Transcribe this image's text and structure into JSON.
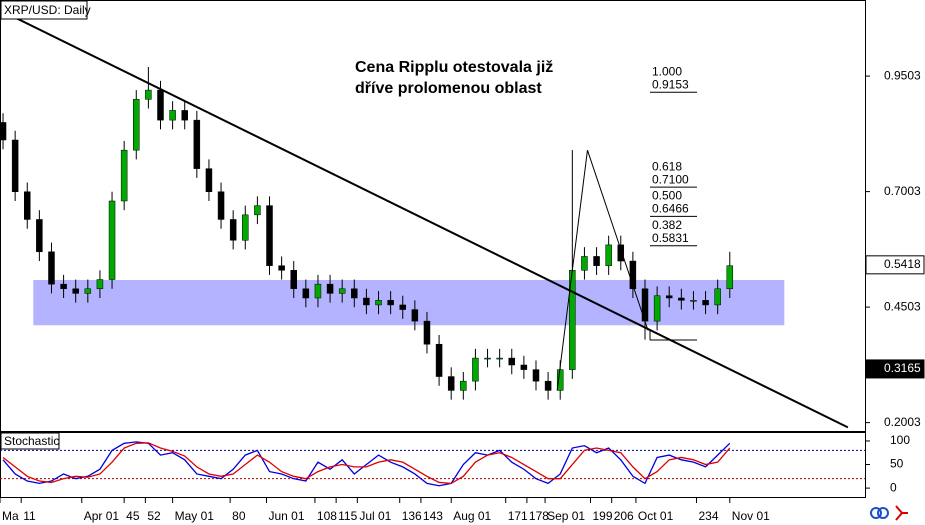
{
  "chart_data": [
    {
      "type": "candlestick",
      "title": "XRP/USD: Daily",
      "annotation": [
        "Cena Ripplu otestovala již",
        "dříve prolomenou oblast"
      ],
      "x": [
        5,
        9,
        13,
        17,
        21,
        25,
        29,
        33,
        37,
        41,
        45,
        49,
        53,
        57,
        61,
        65,
        69,
        73,
        77,
        81,
        85,
        89,
        93,
        97,
        101,
        105,
        109,
        113,
        117,
        121,
        125,
        129,
        133,
        137,
        141,
        145,
        149,
        153,
        157,
        161,
        165,
        169,
        173,
        177,
        181,
        185,
        189,
        193,
        197,
        201,
        205,
        209,
        213,
        217,
        221,
        225,
        229,
        233,
        237,
        241,
        245
      ],
      "open": [
        0.85,
        0.812,
        0.7,
        0.64,
        0.57,
        0.5,
        0.49,
        0.48,
        0.49,
        0.51,
        0.68,
        0.79,
        0.9,
        0.92,
        0.855,
        0.876,
        0.855,
        0.75,
        0.7,
        0.64,
        0.595,
        0.65,
        0.67,
        0.54,
        0.53,
        0.49,
        0.47,
        0.5,
        0.48,
        0.49,
        0.47,
        0.455,
        0.465,
        0.455,
        0.445,
        0.42,
        0.37,
        0.3,
        0.27,
        0.29,
        0.34,
        0.34,
        0.34,
        0.325,
        0.315,
        0.29,
        0.27,
        0.315,
        0.53,
        0.56,
        0.54,
        0.585,
        0.55,
        0.49,
        0.42,
        0.475,
        0.47,
        0.465,
        0.465,
        0.455,
        0.49
      ],
      "high": [
        0.87,
        0.832,
        0.72,
        0.66,
        0.59,
        0.52,
        0.51,
        0.51,
        0.53,
        0.7,
        0.81,
        0.92,
        0.97,
        0.94,
        0.896,
        0.896,
        0.875,
        0.77,
        0.72,
        0.66,
        0.67,
        0.69,
        0.69,
        0.56,
        0.55,
        0.51,
        0.52,
        0.52,
        0.51,
        0.51,
        0.49,
        0.485,
        0.485,
        0.475,
        0.465,
        0.44,
        0.39,
        0.32,
        0.31,
        0.36,
        0.36,
        0.36,
        0.36,
        0.345,
        0.335,
        0.31,
        0.335,
        0.79,
        0.58,
        0.58,
        0.605,
        0.605,
        0.57,
        0.51,
        0.495,
        0.495,
        0.49,
        0.485,
        0.485,
        0.51,
        0.57
      ],
      "low": [
        0.792,
        0.68,
        0.62,
        0.55,
        0.48,
        0.47,
        0.46,
        0.46,
        0.47,
        0.49,
        0.66,
        0.77,
        0.88,
        0.835,
        0.835,
        0.835,
        0.73,
        0.68,
        0.62,
        0.575,
        0.575,
        0.63,
        0.52,
        0.51,
        0.47,
        0.45,
        0.45,
        0.46,
        0.46,
        0.45,
        0.435,
        0.435,
        0.435,
        0.425,
        0.4,
        0.35,
        0.28,
        0.25,
        0.25,
        0.27,
        0.32,
        0.32,
        0.305,
        0.295,
        0.27,
        0.25,
        0.25,
        0.295,
        0.51,
        0.52,
        0.52,
        0.53,
        0.47,
        0.38,
        0.4,
        0.45,
        0.445,
        0.445,
        0.435,
        0.435,
        0.47
      ],
      "close": [
        0.812,
        0.7,
        0.64,
        0.57,
        0.5,
        0.49,
        0.48,
        0.49,
        0.51,
        0.68,
        0.79,
        0.9,
        0.92,
        0.855,
        0.876,
        0.855,
        0.75,
        0.7,
        0.64,
        0.595,
        0.65,
        0.67,
        0.54,
        0.53,
        0.49,
        0.47,
        0.5,
        0.48,
        0.49,
        0.47,
        0.455,
        0.465,
        0.455,
        0.445,
        0.42,
        0.37,
        0.3,
        0.27,
        0.29,
        0.34,
        0.34,
        0.34,
        0.325,
        0.315,
        0.29,
        0.27,
        0.315,
        0.53,
        0.56,
        0.54,
        0.585,
        0.55,
        0.49,
        0.42,
        0.475,
        0.47,
        0.465,
        0.465,
        0.455,
        0.49,
        0.54
      ],
      "up_color": "#00a800",
      "down_color": "#000000",
      "xlim": [
        4,
        288
      ],
      "xticks": [
        {
          "value": 4,
          "label": "Ma"
        },
        11,
        {
          "value": 31,
          "label": "Apr 01"
        },
        45,
        52,
        {
          "value": 61,
          "label": "May 01"
        },
        80,
        {
          "value": 92,
          "label": "Jun 01"
        },
        108,
        115,
        {
          "value": 122,
          "label": "Jul 01"
        },
        136,
        143,
        {
          "value": 153,
          "label": "Aug 01"
        },
        171,
        178,
        {
          "value": 184,
          "label": "Sep 01"
        },
        199,
        206,
        {
          "value": 214,
          "label": "Oct 01"
        },
        234,
        {
          "value": 245,
          "label": "Nov 01"
        }
      ],
      "ylim": [
        0.18,
        1.115
      ],
      "yticks": [
        0.2003,
        0.4503,
        0.7003,
        0.9503
      ],
      "price_markers": [
        0.5418,
        0.3165
      ],
      "trendline": {
        "x": [
          4,
          284
        ],
        "y": [
          1.093,
          0.19
        ]
      },
      "zone": {
        "x": [
          15,
          263
        ],
        "y": [
          0.411,
          0.509
        ],
        "color": "#8080ff"
      },
      "fib_swing": {
        "x": [
          188,
          198,
          218
        ],
        "y": [
          0.27,
          0.79,
          0.4
        ]
      },
      "fib_levels": [
        {
          "ratio": "1.000",
          "price": 0.9153
        },
        {
          "ratio": "0.618",
          "price": {
            "value": 0.71,
            "label": "0.7100"
          }
        },
        {
          "ratio": "0.500",
          "price": 0.6466
        },
        {
          "ratio": "0.382",
          "price": 0.5831
        }
      ]
    },
    {
      "type": "line",
      "title": "Stochastic",
      "x": [
        5,
        9,
        13,
        17,
        21,
        25,
        29,
        33,
        37,
        41,
        45,
        49,
        53,
        57,
        61,
        65,
        69,
        73,
        77,
        81,
        85,
        89,
        93,
        97,
        101,
        105,
        109,
        113,
        117,
        121,
        125,
        129,
        133,
        137,
        141,
        145,
        149,
        153,
        157,
        161,
        165,
        169,
        173,
        177,
        181,
        185,
        189,
        193,
        197,
        201,
        205,
        209,
        213,
        217,
        221,
        225,
        229,
        233,
        237,
        241,
        245
      ],
      "series": [
        {
          "color": "#0000dd",
          "values": [
            60,
            30,
            15,
            10,
            15,
            30,
            20,
            25,
            40,
            80,
            95,
            98,
            95,
            70,
            75,
            60,
            30,
            25,
            20,
            40,
            70,
            80,
            35,
            30,
            20,
            15,
            55,
            40,
            60,
            30,
            50,
            70,
            55,
            45,
            30,
            10,
            5,
            10,
            50,
            75,
            70,
            80,
            55,
            40,
            20,
            10,
            30,
            85,
            90,
            75,
            85,
            60,
            25,
            10,
            65,
            70,
            60,
            55,
            45,
            70,
            95
          ]
        },
        {
          "color": "#dd0000",
          "values": [
            65,
            45,
            25,
            15,
            12,
            20,
            25,
            23,
            30,
            55,
            85,
            95,
            96,
            85,
            78,
            68,
            45,
            30,
            25,
            30,
            50,
            70,
            55,
            35,
            25,
            20,
            35,
            45,
            50,
            45,
            45,
            55,
            60,
            55,
            40,
            25,
            12,
            10,
            25,
            55,
            70,
            75,
            65,
            50,
            35,
            20,
            20,
            50,
            80,
            85,
            80,
            75,
            45,
            20,
            35,
            60,
            65,
            60,
            50,
            55,
            85
          ]
        }
      ],
      "levels": [
        20,
        80
      ],
      "ylim": [
        -21,
        119
      ],
      "yticks": [
        0,
        50,
        100
      ]
    }
  ]
}
